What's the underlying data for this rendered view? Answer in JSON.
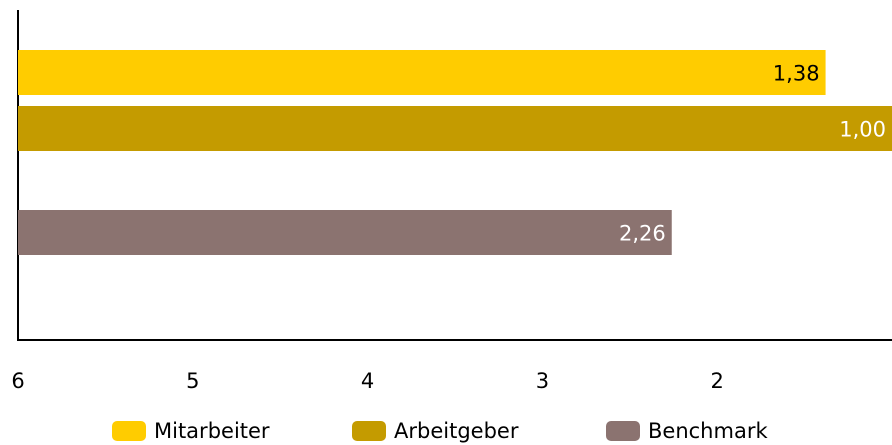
{
  "chart_data": {
    "type": "hbar",
    "categories": [
      null,
      null
    ],
    "series": [
      {
        "name": "Mitarbeiter",
        "color": "#ffcc00",
        "values": [
          1.38,
          null
        ],
        "value_labels": [
          "1,38",
          null
        ]
      },
      {
        "name": "Arbeitgeber",
        "color": "#c49b00",
        "values": [
          1.0,
          null
        ],
        "value_labels": [
          "1,00",
          null
        ]
      },
      {
        "name": "Benchmark",
        "color": "#8b7370",
        "values": [
          null,
          2.26
        ],
        "value_labels": [
          null,
          "2,26"
        ]
      }
    ],
    "xlim": [
      6,
      1
    ],
    "xticks": [
      6,
      5,
      4,
      3,
      2
    ],
    "legend": "bottom"
  }
}
